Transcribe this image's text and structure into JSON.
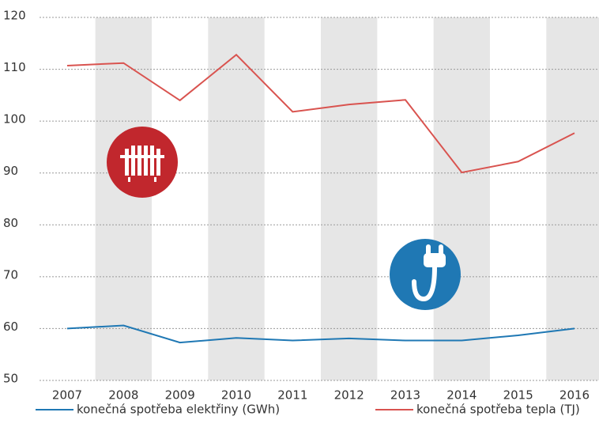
{
  "chart_data": {
    "type": "line",
    "categories": [
      "2007",
      "2008",
      "2009",
      "2010",
      "2011",
      "2012",
      "2013",
      "2014",
      "2015",
      "2016"
    ],
    "series": [
      {
        "name": "konečná spotřeba elektřiny (GWh)",
        "color": "#1f78b4",
        "values": [
          60,
          60.6,
          57.3,
          58.2,
          57.7,
          58.1,
          57.7,
          57.7,
          58.7,
          60
        ]
      },
      {
        "name": "konečná spotřeba tepla (TJ)",
        "color": "#d9534f",
        "values": [
          110.7,
          111.2,
          104,
          112.8,
          101.8,
          103.2,
          104.1,
          90.1,
          92.2,
          97.7
        ]
      }
    ],
    "ylim": [
      50,
      120
    ],
    "yticks": [
      50,
      60,
      70,
      80,
      90,
      100,
      110,
      120
    ],
    "grid": true
  }
}
